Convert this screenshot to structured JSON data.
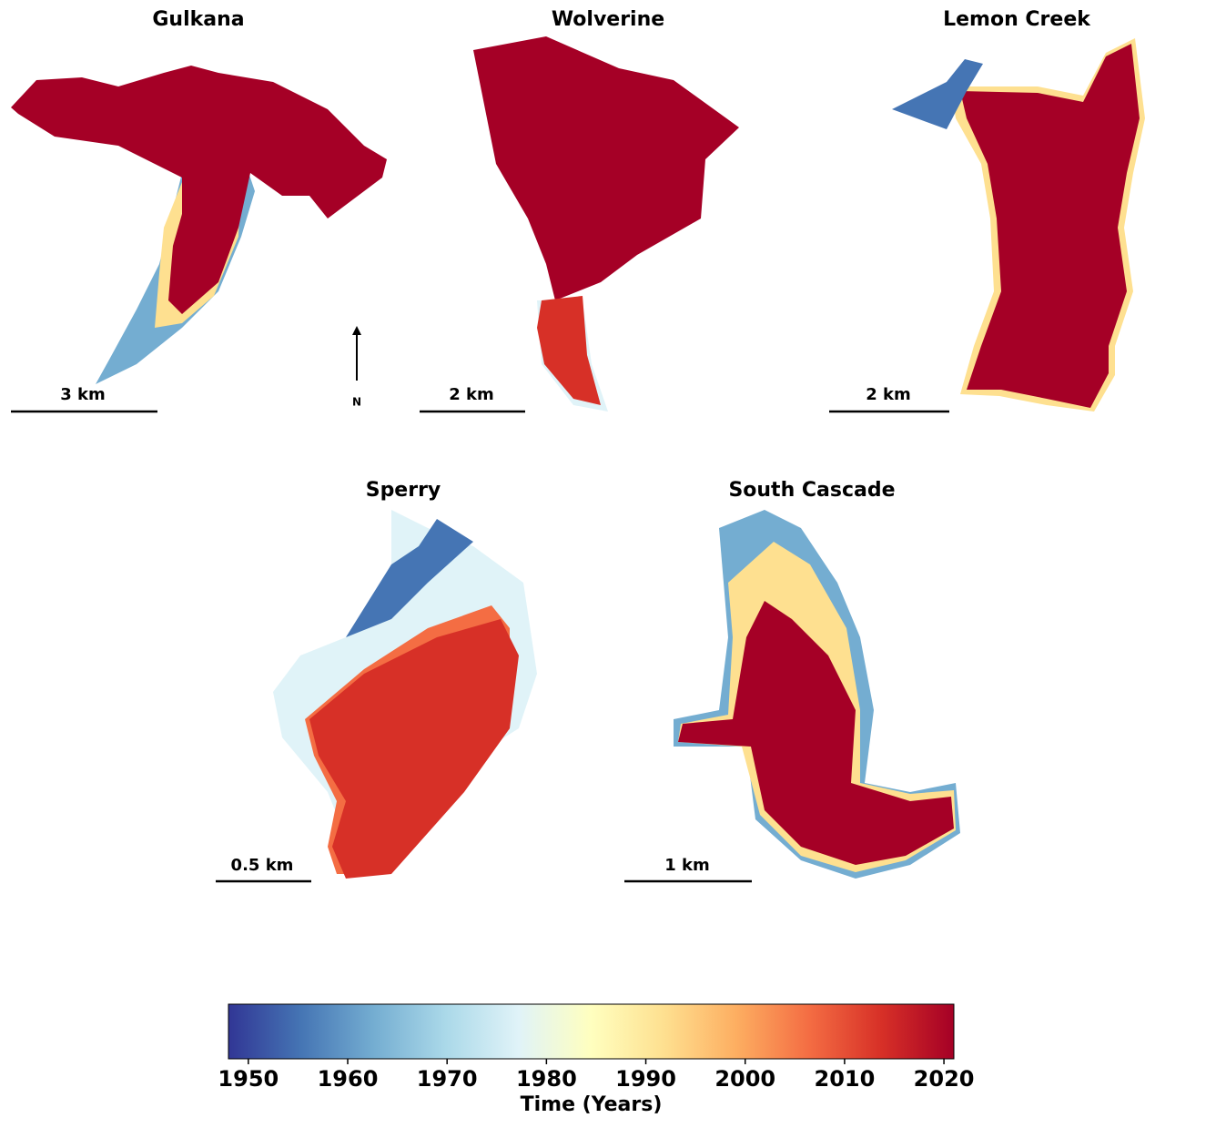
{
  "panels": [
    {
      "title": "Gulkana",
      "scale_label": "3 km"
    },
    {
      "title": "Wolverine",
      "scale_label": "2 km"
    },
    {
      "title": "Lemon Creek",
      "scale_label": "2 km"
    },
    {
      "title": "Sperry",
      "scale_label": "0.5 km"
    },
    {
      "title": "South Cascade",
      "scale_label": "1 km"
    }
  ],
  "north_label": "N",
  "colorbar": {
    "label": "Time (Years)",
    "range": [
      1948,
      2021
    ],
    "ticks": [
      1950,
      1960,
      1970,
      1980,
      1990,
      2000,
      2010,
      2020
    ],
    "colors": [
      "#313695",
      "#4575b4",
      "#74add1",
      "#abd9e9",
      "#e0f3f8",
      "#ffffbf",
      "#fee090",
      "#fdae61",
      "#f46d43",
      "#d73027",
      "#a50026"
    ]
  }
}
